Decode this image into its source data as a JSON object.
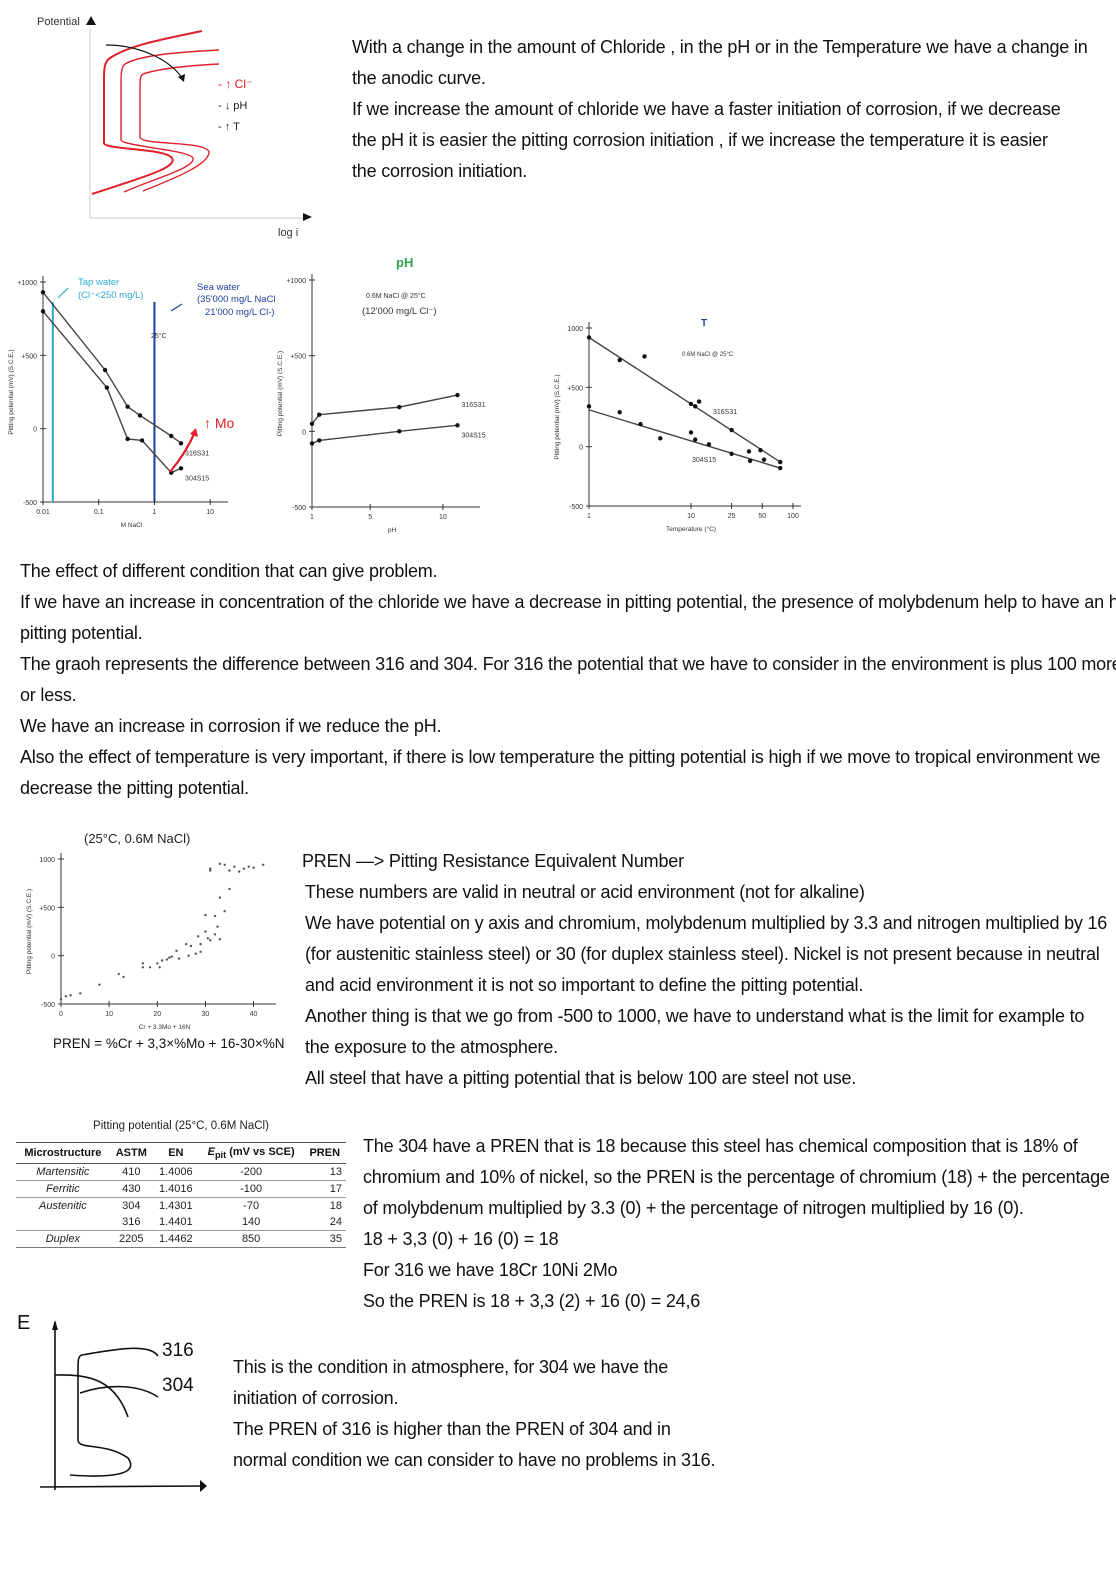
{
  "intro_figure": {
    "y_label": "Potential",
    "x_label": "log i",
    "legend": [
      "- ↑ Cl⁻",
      "- ↓ pH",
      "- ↑ T"
    ],
    "curve_color": "#e0202a"
  },
  "intro_text": [
    "With a change in the amount of Chloride , in the pH or in the Temperature we have a change in",
    "the anodic curve.",
    "If we increase the amount of chloride we have a faster initiation of corrosion, if we decrease",
    "the pH it is easier the pitting corrosion initiation , if we increase the temperature it is easier",
    "the corrosion initiation."
  ],
  "chart_data": [
    {
      "type": "line",
      "xlabel": "M NaCl",
      "ylabel": "Pitting potential (mV) (S.C.E.)",
      "xscale": "log",
      "xlim": [
        0.01,
        15
      ],
      "ylim": [
        -500,
        1000
      ],
      "xticks": [
        "0.01",
        "0.1",
        "1",
        "10"
      ],
      "yticks": [
        "+1000",
        "+500",
        "0",
        "-500"
      ],
      "annotations": {
        "tap": "Tap water",
        "tap2": "(Cl⁻<250 mg/L)",
        "sea": "Sea water",
        "sea2": "(35'000 mg/L NaCl",
        "sea3": "21'000 mg/L Cl-)",
        "temp": "25°C",
        "mo": "↑ Mo"
      },
      "vlines": [
        {
          "x": 0.015,
          "color": "#29a8cf"
        },
        {
          "x": 1,
          "color": "#1f3f9c"
        }
      ],
      "series": [
        {
          "name": "316S31",
          "x": [
            0.01,
            0.13,
            0.33,
            0.55,
            2,
            3
          ],
          "y": [
            930,
            400,
            150,
            90,
            -50,
            -100
          ]
        },
        {
          "name": "304S15",
          "x": [
            0.01,
            0.14,
            0.33,
            0.6,
            2,
            3
          ],
          "y": [
            800,
            280,
            -70,
            -80,
            -300,
            -270
          ]
        }
      ]
    },
    {
      "type": "line",
      "title": "pH",
      "xlabel": "pH",
      "ylabel": "Pitting potential (mV) (S.C.E.)",
      "xlim": [
        1,
        12
      ],
      "ylim": [
        -500,
        1000
      ],
      "xticks": [
        "1",
        "5",
        "10"
      ],
      "yticks": [
        "+1000",
        "+500",
        "0",
        "-500"
      ],
      "annotations": {
        "cond": "0.6M NaCl @ 25°C",
        "cond2": "(12'000 mg/L Cl⁻)"
      },
      "series": [
        {
          "name": "316S31",
          "x": [
            1,
            1.5,
            7,
            11
          ],
          "y": [
            50,
            110,
            160,
            240
          ]
        },
        {
          "name": "304S15",
          "x": [
            1,
            1.5,
            7,
            11
          ],
          "y": [
            -80,
            -60,
            0,
            40
          ]
        }
      ]
    },
    {
      "type": "scatter",
      "title": "T",
      "xlabel": "Temperature (°C)",
      "ylabel": "Pitting potential (mV) (S.C.E.)",
      "xscale": "log",
      "xlim": [
        1,
        100
      ],
      "ylim": [
        -500,
        1000
      ],
      "xticks": [
        "1",
        "10",
        "25",
        "50",
        "100"
      ],
      "yticks": [
        "1000",
        "+500",
        "0",
        "-500"
      ],
      "annotations": {
        "cond": "0.6M NaCl @ 25°C"
      },
      "series": [
        {
          "name": "316S31",
          "x": [
            1,
            2,
            3.5,
            10,
            11,
            12,
            25,
            48,
            75
          ],
          "y": [
            920,
            730,
            760,
            360,
            340,
            380,
            140,
            -30,
            -130
          ],
          "fit": [
            [
              1,
              920
            ],
            [
              75,
              -130
            ]
          ]
        },
        {
          "name": "304S15",
          "x": [
            1,
            2,
            3.2,
            5,
            10,
            11,
            15,
            25,
            37,
            38,
            52,
            75
          ],
          "y": [
            340,
            290,
            190,
            70,
            120,
            60,
            20,
            -60,
            -40,
            -120,
            -110,
            -180
          ],
          "fit": [
            [
              1,
              310
            ],
            [
              75,
              -180
            ]
          ]
        }
      ]
    },
    {
      "type": "scatter",
      "title": "(25°C, 0.6M NaCl)",
      "xlabel": "Cr + 3.3Mo + 16N",
      "ylabel": "Pitting potential (mV) (S.C.E.)",
      "xlim": [
        0,
        43
      ],
      "ylim": [
        -500,
        1000
      ],
      "xticks": [
        "0",
        "10",
        "20",
        "30",
        "40"
      ],
      "yticks": [
        "1000",
        "+500",
        "0",
        "-500"
      ],
      "x": [
        0,
        1,
        2,
        4,
        8,
        12,
        13,
        17,
        17,
        18.5,
        20,
        20.5,
        21,
        22,
        22.5,
        23,
        24,
        24.5,
        26,
        26.5,
        27,
        28,
        28.5,
        29,
        29,
        30,
        30,
        30.5,
        31,
        31,
        32,
        32,
        32.5,
        33,
        33,
        34,
        35,
        31,
        33,
        34,
        35,
        36,
        37,
        38,
        39,
        40,
        42
      ],
      "y": [
        -450,
        -420,
        -410,
        -390,
        -300,
        -190,
        -220,
        -120,
        -80,
        -120,
        -80,
        -120,
        -50,
        -40,
        -20,
        -10,
        50,
        -30,
        120,
        0,
        100,
        20,
        200,
        40,
        120,
        420,
        250,
        180,
        160,
        880,
        410,
        220,
        300,
        600,
        170,
        460,
        690,
        900,
        950,
        940,
        880,
        920,
        870,
        900,
        920,
        910,
        940
      ]
    }
  ],
  "section2_text": [
    "The effect of different condition that can give problem.",
    "If we have an increase in concentration of the chloride we have a decrease in pitting potential, the presence of molybdenum help to have an higher",
    "pitting potential.",
    "The graoh represents the difference between 316 and 304. For 316 the potential that we have to consider in the environment is plus 100 more",
    "or less.",
    "We have an increase in corrosion if we reduce the pH.",
    "Also the effect of temperature is very important, if there is low temperature the pitting potential is high if we move to tropical environment we",
    "decrease the pitting potential."
  ],
  "pren_formula": "PREN = %Cr + 3,3×%Mo + 16-30×%N",
  "pren_text": [
    "PREN —> Pitting Resistance Equivalent Number",
    "These numbers are valid in neutral or acid environment (not for alkaline)",
    "We have potential on y axis and chromium, molybdenum multiplied by 3.3 and nitrogen multiplied by 16",
    "(for austenitic stainless steel) or 30 (for duplex stainless steel). Nickel is not present because in neutral",
    "and acid environment it is not so important to define the pitting potential.",
    "Another thing is that we go from -500 to 1000, we have to understand what is the limit for example to",
    "the exposure to the atmosphere.",
    "All steel that have a pitting potential that is below 100 are steel not use."
  ],
  "table": {
    "caption": "Pitting potential (25°C, 0.6M NaCl)",
    "headers": [
      "Microstructure",
      "ASTM",
      "EN",
      "E",
      "pit",
      " (mV vs SCE)",
      "PREN"
    ],
    "rows": [
      [
        "Martensitic",
        "410",
        "1.4006",
        "-200",
        "13"
      ],
      [
        "Ferritic",
        "430",
        "1.4016",
        "-100",
        "17"
      ],
      [
        "Austenitic",
        "304",
        "1.4301",
        "-70",
        "18"
      ],
      [
        "",
        "316",
        "1.4401",
        "140",
        "24"
      ],
      [
        "Duplex",
        "2205",
        "1.4462",
        "850",
        "35"
      ]
    ]
  },
  "pren304_text": [
    "The 304 have a PREN that is 18 because this steel has chemical composition that is 18% of",
    "chromium and 10% of nickel, so the PREN is the percentage of chromium (18) + the percentage",
    "of molybdenum multiplied by 3.3 (0) + the percentage of nitrogen multiplied by 16 (0).",
    "18 + 3,3 (0) + 16 (0) = 18",
    "For 316 we have 18Cr 10Ni 2Mo",
    "So the PREN is 18 + 3,3 (2) + 16 (0) = 24,6"
  ],
  "sketch": {
    "y_label": "E",
    "labels": [
      "316",
      "304"
    ]
  },
  "final_text": [
    "This is the condition in atmosphere, for 304 we have the",
    "initiation of corrosion.",
    "The PREN of 316 is higher than the PREN of 304 and in",
    "normal condition we can consider to have no problems in 316."
  ]
}
